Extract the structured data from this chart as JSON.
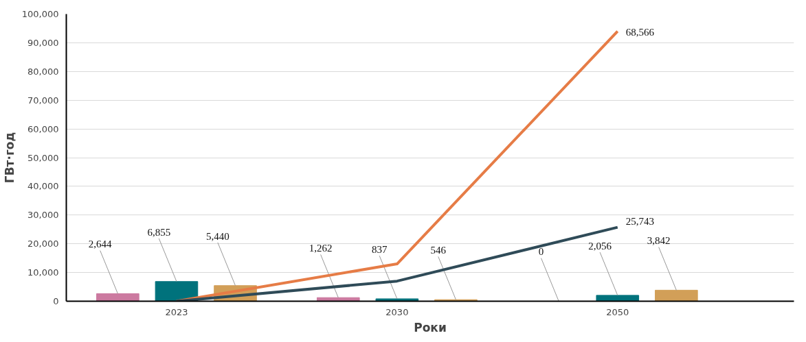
{
  "chart_data": {
    "type": "bar",
    "xlabel": "Роки",
    "ylabel": "ГВт·год",
    "categories": [
      "2023",
      "2030",
      "2050"
    ],
    "series": [
      {
        "color": "#cc7aa0",
        "values": [
          2644,
          1262,
          0
        ],
        "value_labels": [
          "2,644",
          "1,262",
          "0"
        ]
      },
      {
        "color": "#00727c",
        "values": [
          6855,
          837,
          2056
        ],
        "value_labels": [
          "6,855",
          "837",
          "2,056"
        ]
      },
      {
        "color": "#d29f58",
        "values": [
          5440,
          546,
          3842
        ],
        "value_labels": [
          "5,440",
          "546",
          "3,842"
        ]
      },
      {
        "type": "line",
        "color": "#e67c46",
        "values": [
          0,
          13000,
          94000
        ]
      },
      {
        "type": "line",
        "color": "#2f4b58",
        "values": [
          0,
          7000,
          25743
        ],
        "value_labels": [
          null,
          null,
          "25,743"
        ]
      }
    ],
    "ylim": [
      0,
      100000
    ],
    "yticks": [
      {
        "value": 0,
        "label": "0"
      },
      {
        "value": 10000,
        "label": "10,000"
      },
      {
        "value": 20000,
        "label": "20,000"
      },
      {
        "value": 30000,
        "label": "30,000"
      },
      {
        "value": 40000,
        "label": "40,000"
      },
      {
        "value": 50000,
        "label": "50,000"
      },
      {
        "value": 60000,
        "label": "60,000"
      },
      {
        "value": 70000,
        "label": "70,000"
      },
      {
        "value": 80000,
        "label": "80,000"
      },
      {
        "value": 90000,
        "label": "90,000"
      },
      {
        "value": 100000,
        "label": "100,000"
      }
    ],
    "annotations": [
      "68,566"
    ],
    "grid": "y"
  }
}
